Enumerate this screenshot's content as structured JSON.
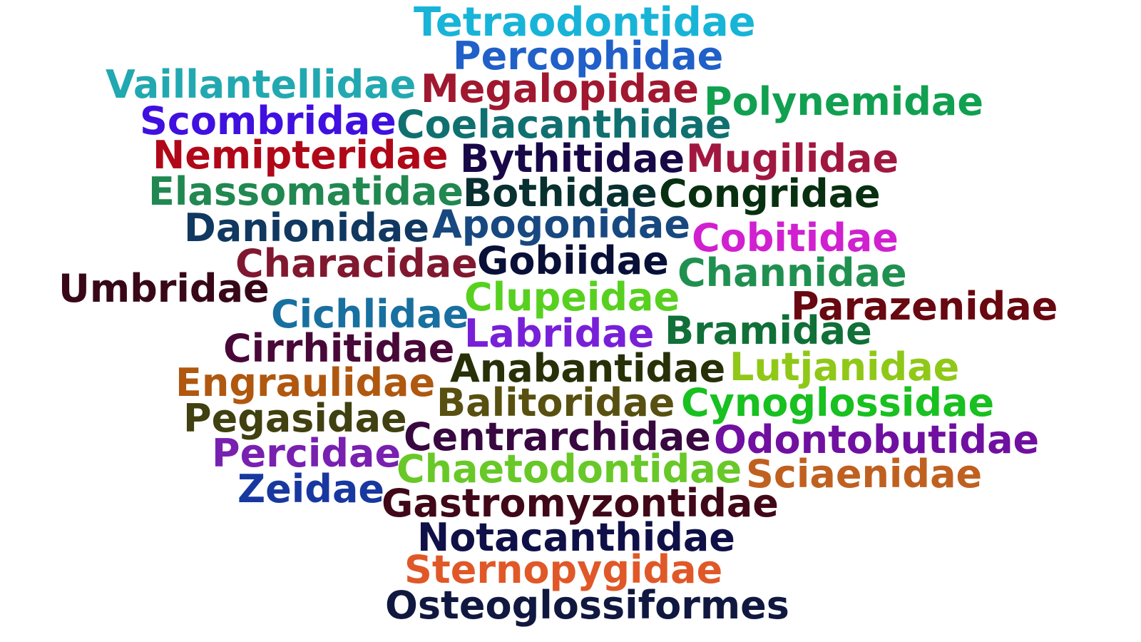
{
  "words": [
    {
      "text": "Tetraodontidae",
      "color": "#18b4d8"
    },
    {
      "text": "Percophidae",
      "color": "#2060c8"
    },
    {
      "text": "Vaillantellidae",
      "color": "#22a8b0"
    },
    {
      "text": "Megalopidae",
      "color": "#a01830"
    },
    {
      "text": "Polynemidae",
      "color": "#10a050"
    },
    {
      "text": "Scombridae",
      "color": "#4010e0"
    },
    {
      "text": "Coelacanthidae",
      "color": "#107070"
    },
    {
      "text": "Nemipteridae",
      "color": "#b00818"
    },
    {
      "text": "Bythitidae",
      "color": "#180848"
    },
    {
      "text": "Mugilidae",
      "color": "#a01840"
    },
    {
      "text": "Elassomatidae",
      "color": "#208850"
    },
    {
      "text": "Bothidae",
      "color": "#083030"
    },
    {
      "text": "Congridae",
      "color": "#083010"
    },
    {
      "text": "Danionidae",
      "color": "#103860"
    },
    {
      "text": "Apogonidae",
      "color": "#184880"
    },
    {
      "text": "Cobitidae",
      "color": "#d020d0"
    },
    {
      "text": "Characidae",
      "color": "#801830"
    },
    {
      "text": "Gobiidae",
      "color": "#081038"
    },
    {
      "text": "Channidae",
      "color": "#209050"
    },
    {
      "text": "Umbridae",
      "color": "#380818"
    },
    {
      "text": "Clupeidae",
      "color": "#58d020"
    },
    {
      "text": "Parazenidae",
      "color": "#680810"
    },
    {
      "text": "Cichlidae",
      "color": "#1870a0"
    },
    {
      "text": "Labridae",
      "color": "#7820d8"
    },
    {
      "text": "Bramidae",
      "color": "#107038"
    },
    {
      "text": "Cirrhitidae",
      "color": "#480838"
    },
    {
      "text": "Anabantidae",
      "color": "#283008"
    },
    {
      "text": "Lutjanidae",
      "color": "#90c818"
    },
    {
      "text": "Engraulidae",
      "color": "#b05810"
    },
    {
      "text": "Balitoridae",
      "color": "#585010"
    },
    {
      "text": "Cynoglossidae",
      "color": "#18c020"
    },
    {
      "text": "Pegasidae",
      "color": "#404010"
    },
    {
      "text": "Centrarchidae",
      "color": "#380840"
    },
    {
      "text": "Odontobutidae",
      "color": "#7010a0"
    },
    {
      "text": "Percidae",
      "color": "#7820b0"
    },
    {
      "text": "Chaetodontidae",
      "color": "#68c828"
    },
    {
      "text": "Sciaenidae",
      "color": "#c06020"
    },
    {
      "text": "Zeidae",
      "color": "#1838a0"
    },
    {
      "text": "Gastromyzontidae",
      "color": "#400818"
    },
    {
      "text": "Notacanthidae",
      "color": "#101048"
    },
    {
      "text": "Sternopygidae",
      "color": "#e05828"
    },
    {
      "text": "Osteoglossiformes",
      "color": "#101840"
    }
  ]
}
